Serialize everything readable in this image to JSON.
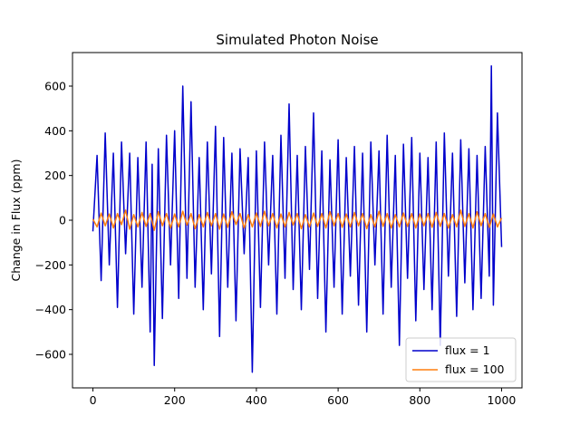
{
  "chart_data": {
    "type": "line",
    "title": "Simulated Photon Noise",
    "xlabel": "",
    "ylabel": "Change in Flux (ppm)",
    "xlim": [
      -50,
      1050
    ],
    "ylim": [
      -750,
      750
    ],
    "xticks": [
      0,
      200,
      400,
      600,
      800,
      1000
    ],
    "yticks": [
      -600,
      -400,
      -200,
      0,
      200,
      400,
      600
    ],
    "grid": false,
    "legend_position": "bottom-right",
    "series": [
      {
        "name": "flux = 1",
        "color": "#0000cc",
        "x": [
          0,
          10,
          20,
          30,
          40,
          50,
          60,
          70,
          80,
          90,
          100,
          110,
          120,
          130,
          140,
          145,
          150,
          160,
          170,
          180,
          190,
          200,
          210,
          220,
          230,
          240,
          250,
          260,
          270,
          280,
          290,
          300,
          310,
          320,
          330,
          340,
          350,
          360,
          370,
          380,
          390,
          400,
          410,
          420,
          430,
          440,
          450,
          460,
          470,
          480,
          490,
          500,
          510,
          520,
          530,
          540,
          550,
          560,
          570,
          580,
          590,
          600,
          610,
          620,
          630,
          640,
          650,
          660,
          670,
          680,
          690,
          700,
          710,
          720,
          730,
          740,
          750,
          760,
          770,
          780,
          790,
          800,
          810,
          820,
          830,
          840,
          850,
          860,
          870,
          880,
          890,
          900,
          910,
          920,
          930,
          940,
          950,
          960,
          970,
          975,
          980,
          990,
          1000
        ],
        "values": [
          -50,
          290,
          -270,
          390,
          -200,
          300,
          -390,
          350,
          -150,
          300,
          -420,
          280,
          -300,
          350,
          -500,
          250,
          -650,
          320,
          -440,
          380,
          -200,
          400,
          -350,
          600,
          -260,
          530,
          -300,
          280,
          -400,
          350,
          -240,
          420,
          -520,
          370,
          -300,
          300,
          -450,
          320,
          -150,
          280,
          -680,
          310,
          -390,
          350,
          -200,
          290,
          -420,
          380,
          -260,
          520,
          -310,
          290,
          -400,
          330,
          -220,
          480,
          -350,
          310,
          -500,
          270,
          -300,
          360,
          -420,
          280,
          -250,
          330,
          -380,
          300,
          -500,
          350,
          -200,
          310,
          -420,
          380,
          -300,
          290,
          -560,
          340,
          -260,
          370,
          -450,
          300,
          -310,
          280,
          -400,
          350,
          -560,
          390,
          -250,
          300,
          -430,
          360,
          -280,
          320,
          -400,
          290,
          -350,
          330,
          -250,
          690,
          -380,
          480,
          -120
        ]
      },
      {
        "name": "flux = 100",
        "color": "#ff7f0e",
        "x": [
          0,
          10,
          20,
          30,
          40,
          50,
          60,
          70,
          80,
          90,
          100,
          110,
          120,
          130,
          140,
          150,
          160,
          170,
          180,
          190,
          200,
          210,
          220,
          230,
          240,
          250,
          260,
          270,
          280,
          290,
          300,
          310,
          320,
          330,
          340,
          350,
          360,
          370,
          380,
          390,
          400,
          410,
          420,
          430,
          440,
          450,
          460,
          470,
          480,
          490,
          500,
          510,
          520,
          530,
          540,
          550,
          560,
          570,
          580,
          590,
          600,
          610,
          620,
          630,
          640,
          650,
          660,
          670,
          680,
          690,
          700,
          710,
          720,
          730,
          740,
          750,
          760,
          770,
          780,
          790,
          800,
          810,
          820,
          830,
          840,
          850,
          860,
          870,
          880,
          890,
          900,
          910,
          920,
          930,
          940,
          950,
          960,
          970,
          980,
          990,
          1000
        ],
        "values": [
          5,
          -30,
          32,
          -25,
          28,
          -35,
          30,
          -20,
          45,
          -40,
          25,
          -30,
          35,
          -28,
          30,
          -45,
          38,
          -25,
          30,
          -35,
          28,
          -30,
          40,
          -22,
          30,
          -38,
          25,
          -30,
          35,
          -25,
          30,
          -40,
          28,
          -32,
          38,
          -20,
          30,
          -35,
          25,
          -30,
          32,
          -28,
          40,
          -25,
          30,
          -35,
          28,
          -30,
          35,
          -22,
          30,
          -38,
          25,
          -30,
          32,
          -28,
          30,
          -35,
          38,
          -25,
          30,
          -32,
          28,
          -30,
          35,
          -25,
          30,
          -38,
          25,
          -30,
          40,
          -28,
          30,
          -35,
          25,
          -30,
          32,
          -28,
          30,
          -35,
          28,
          -25,
          30,
          -32,
          35,
          -28,
          30,
          -35,
          25,
          -30,
          45,
          -28,
          30,
          -35,
          38,
          -25,
          30,
          -32,
          28,
          -30,
          10
        ]
      }
    ]
  }
}
